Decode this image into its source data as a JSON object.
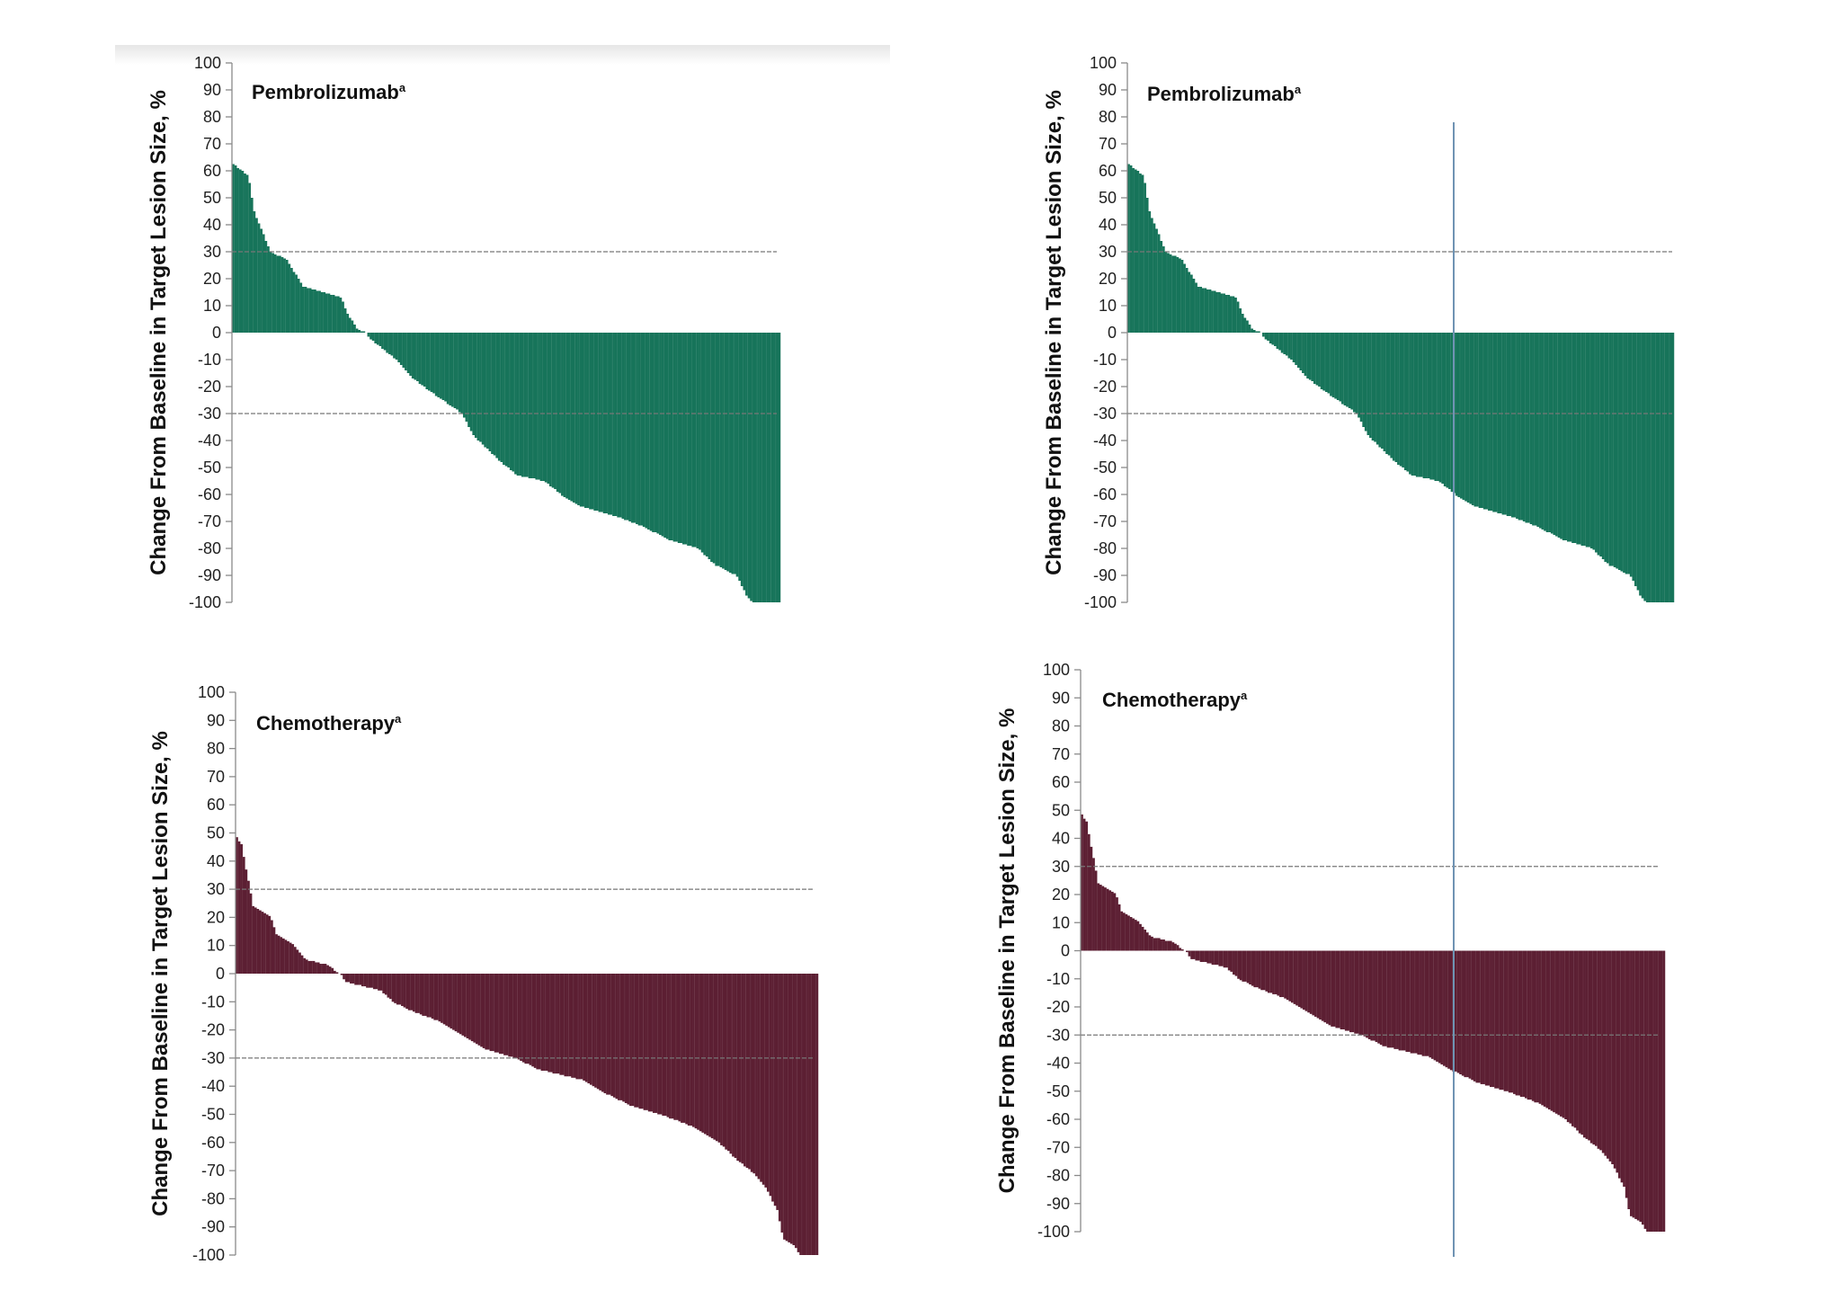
{
  "colors": {
    "pembrolizumab_bar": "#17745a",
    "chemotherapy_bar": "#5c1f33",
    "axis": "#8a8a8a",
    "reference_line": "#777777",
    "cursor_line": "#6f93b3"
  },
  "chart_data": [
    {
      "id": "top-left",
      "type": "bar",
      "title": "Pembrolizumab",
      "title_superscript": "a",
      "ylabel": "Change From Baseline in Target Lesion Size, %",
      "xlabel": "",
      "ylim": [
        -100,
        100
      ],
      "yticks": [
        "100",
        "90",
        "80",
        "70",
        "60",
        "50",
        "40",
        "30",
        "20",
        "10",
        "0",
        "-10",
        "-20",
        "-30",
        "-40",
        "-50",
        "-60",
        "-70",
        "-80",
        "-90",
        "-100"
      ],
      "reference_lines": [
        30,
        -30
      ],
      "grid": false,
      "color": "#17745a",
      "waterfall_profile": [
        [
          0,
          63
        ],
        [
          0.03,
          58
        ],
        [
          0.04,
          45
        ],
        [
          0.05,
          40
        ],
        [
          0.07,
          30
        ],
        [
          0.1,
          27
        ],
        [
          0.13,
          17
        ],
        [
          0.2,
          13
        ],
        [
          0.21,
          7
        ],
        [
          0.23,
          1
        ],
        [
          0.245,
          0
        ],
        [
          0.25,
          -2
        ],
        [
          0.3,
          -10
        ],
        [
          0.33,
          -17
        ],
        [
          0.37,
          -23
        ],
        [
          0.42,
          -30
        ],
        [
          0.44,
          -38
        ],
        [
          0.48,
          -46
        ],
        [
          0.52,
          -53
        ],
        [
          0.57,
          -55
        ],
        [
          0.6,
          -60
        ],
        [
          0.63,
          -64
        ],
        [
          0.7,
          -68
        ],
        [
          0.75,
          -72
        ],
        [
          0.8,
          -77
        ],
        [
          0.85,
          -80
        ],
        [
          0.88,
          -86
        ],
        [
          0.92,
          -90
        ],
        [
          0.94,
          -98
        ],
        [
          0.95,
          -100
        ],
        [
          1.0,
          -100
        ]
      ],
      "n_bars": 235
    },
    {
      "id": "top-right",
      "type": "bar",
      "title": "Pembrolizumab",
      "title_superscript": "a",
      "ylabel": "Change From Baseline in Target Lesion Size, %",
      "xlabel": "",
      "ylim": [
        -100,
        100
      ],
      "yticks": [
        "100",
        "90",
        "80",
        "70",
        "60",
        "50",
        "40",
        "30",
        "20",
        "10",
        "0",
        "-10",
        "-20",
        "-30",
        "-40",
        "-50",
        "-60",
        "-70",
        "-80",
        "-90",
        "-100"
      ],
      "reference_lines": [
        30,
        -30
      ],
      "grid": false,
      "color": "#17745a",
      "waterfall_profile": [
        [
          0,
          63
        ],
        [
          0.03,
          58
        ],
        [
          0.04,
          45
        ],
        [
          0.05,
          40
        ],
        [
          0.07,
          30
        ],
        [
          0.1,
          27
        ],
        [
          0.13,
          17
        ],
        [
          0.2,
          13
        ],
        [
          0.21,
          7
        ],
        [
          0.23,
          1
        ],
        [
          0.245,
          0
        ],
        [
          0.25,
          -2
        ],
        [
          0.3,
          -10
        ],
        [
          0.33,
          -17
        ],
        [
          0.37,
          -23
        ],
        [
          0.42,
          -30
        ],
        [
          0.44,
          -38
        ],
        [
          0.48,
          -46
        ],
        [
          0.52,
          -53
        ],
        [
          0.57,
          -55
        ],
        [
          0.6,
          -60
        ],
        [
          0.63,
          -64
        ],
        [
          0.7,
          -68
        ],
        [
          0.75,
          -72
        ],
        [
          0.8,
          -77
        ],
        [
          0.85,
          -80
        ],
        [
          0.88,
          -86
        ],
        [
          0.92,
          -90
        ],
        [
          0.94,
          -98
        ],
        [
          0.95,
          -100
        ],
        [
          1.0,
          -100
        ]
      ],
      "n_bars": 235
    },
    {
      "id": "bottom-left",
      "type": "bar",
      "title": "Chemotherapy",
      "title_superscript": "a",
      "ylabel": "Change From Baseline in Target Lesion Size, %",
      "xlabel": "",
      "ylim": [
        -100,
        100
      ],
      "yticks": [
        "100",
        "90",
        "80",
        "70",
        "60",
        "50",
        "40",
        "30",
        "20",
        "10",
        "0",
        "-10",
        "-20",
        "-30",
        "-40",
        "-50",
        "-60",
        "-70",
        "-80",
        "-90",
        "-100"
      ],
      "reference_lines": [
        30,
        -30
      ],
      "grid": false,
      "color": "#5c1f33",
      "waterfall_profile": [
        [
          0,
          49
        ],
        [
          0.01,
          46
        ],
        [
          0.02,
          35
        ],
        [
          0.03,
          24
        ],
        [
          0.06,
          20
        ],
        [
          0.07,
          14
        ],
        [
          0.1,
          10
        ],
        [
          0.12,
          5
        ],
        [
          0.16,
          3
        ],
        [
          0.17,
          1
        ],
        [
          0.18,
          0
        ],
        [
          0.19,
          -3
        ],
        [
          0.25,
          -6
        ],
        [
          0.27,
          -10
        ],
        [
          0.3,
          -13
        ],
        [
          0.35,
          -17
        ],
        [
          0.39,
          -22
        ],
        [
          0.43,
          -27
        ],
        [
          0.48,
          -30
        ],
        [
          0.52,
          -34
        ],
        [
          0.6,
          -38
        ],
        [
          0.63,
          -42
        ],
        [
          0.68,
          -47
        ],
        [
          0.73,
          -50
        ],
        [
          0.78,
          -54
        ],
        [
          0.83,
          -60
        ],
        [
          0.86,
          -66
        ],
        [
          0.89,
          -71
        ],
        [
          0.91,
          -76
        ],
        [
          0.93,
          -84
        ],
        [
          0.94,
          -94
        ],
        [
          0.96,
          -97
        ],
        [
          0.97,
          -100
        ],
        [
          1.0,
          -100
        ]
      ],
      "n_bars": 250
    },
    {
      "id": "bottom-right",
      "type": "bar",
      "title": "Chemotherapy",
      "title_superscript": "a",
      "ylabel": "Change From Baseline in Target Lesion Size, %",
      "xlabel": "",
      "ylim": [
        -100,
        100
      ],
      "yticks": [
        "100",
        "90",
        "80",
        "70",
        "60",
        "50",
        "40",
        "30",
        "20",
        "10",
        "0",
        "-10",
        "-20",
        "-30",
        "-40",
        "-50",
        "-60",
        "-70",
        "-80",
        "-90",
        "-100"
      ],
      "reference_lines": [
        30,
        -30
      ],
      "grid": false,
      "color": "#5c1f33",
      "waterfall_profile": [
        [
          0,
          49
        ],
        [
          0.01,
          46
        ],
        [
          0.02,
          35
        ],
        [
          0.03,
          24
        ],
        [
          0.06,
          20
        ],
        [
          0.07,
          14
        ],
        [
          0.1,
          10
        ],
        [
          0.12,
          5
        ],
        [
          0.16,
          3
        ],
        [
          0.17,
          1
        ],
        [
          0.18,
          0
        ],
        [
          0.19,
          -3
        ],
        [
          0.25,
          -6
        ],
        [
          0.27,
          -10
        ],
        [
          0.3,
          -13
        ],
        [
          0.35,
          -17
        ],
        [
          0.39,
          -22
        ],
        [
          0.43,
          -27
        ],
        [
          0.48,
          -30
        ],
        [
          0.52,
          -34
        ],
        [
          0.6,
          -38
        ],
        [
          0.63,
          -42
        ],
        [
          0.68,
          -47
        ],
        [
          0.73,
          -50
        ],
        [
          0.78,
          -54
        ],
        [
          0.83,
          -60
        ],
        [
          0.86,
          -66
        ],
        [
          0.89,
          -71
        ],
        [
          0.91,
          -76
        ],
        [
          0.93,
          -84
        ],
        [
          0.94,
          -94
        ],
        [
          0.96,
          -97
        ],
        [
          0.97,
          -100
        ],
        [
          1.0,
          -100
        ]
      ],
      "n_bars": 250
    }
  ]
}
